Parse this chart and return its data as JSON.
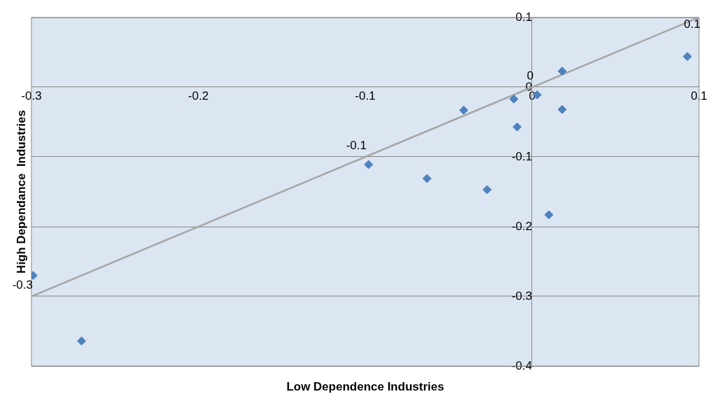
{
  "chart_data": {
    "type": "scatter",
    "xlabel": "Low Dependence Industries",
    "ylabel": "High Dependance  Industries",
    "xlim": [
      -0.3,
      0.1
    ],
    "ylim": [
      -0.4,
      0.1
    ],
    "xticks": [
      -0.3,
      -0.2,
      -0.1,
      0,
      0.1
    ],
    "yticks": [
      0.1,
      0,
      -0.1,
      -0.2,
      -0.3,
      -0.4
    ],
    "grid": "y",
    "marker": "diamond",
    "series": [
      {
        "color": "#4f81bd",
        "x": [
          -0.299,
          -0.27,
          -0.098,
          -0.063,
          -0.041,
          -0.027,
          -0.011,
          -0.009,
          0.003,
          0.01,
          0.018,
          0.018,
          0.093
        ],
        "values": [
          -0.27,
          -0.364,
          -0.111,
          -0.131,
          -0.033,
          -0.147,
          -0.017,
          -0.057,
          -0.011,
          -0.183,
          0.023,
          -0.032,
          0.044
        ]
      },
      {
        "type": "line",
        "marker": "none",
        "color": "#a6a6a6",
        "x": [
          -0.3,
          -0.1,
          0,
          0.1
        ],
        "values": [
          -0.3,
          -0.1,
          0,
          0.1
        ],
        "value_labels": [
          "-0.3",
          "-0.1",
          "0",
          "0.1"
        ]
      }
    ]
  }
}
